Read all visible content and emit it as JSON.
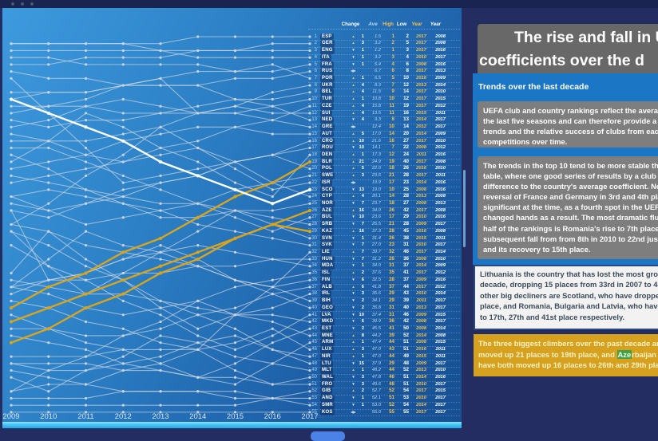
{
  "right_panel": {
    "title_lines": [
      "The rise and fall in U",
      "coefficients over the d"
    ],
    "section_label": "Trends over the last decade",
    "para1_lines": [
      "UEFA club and country rankings reflect the average res",
      "the last five seasons and can therefore provide a good",
      "trends and the relative success of clubs from each cou",
      "competitions over time."
    ],
    "para2_lines": [
      "The trends in the top 10 tend to be more stable than l",
      "table, where one good series of results by a club can m",
      "difference to the country's average coefficient. Nonet",
      "reversal of France and Germany in 3rd and 4th place w",
      "significant at the time, as a fourth spot in the UEFA Ch",
      "changed hands as a result. The most dramatic fluctuat",
      "half of the rankings is Romania's rise to 7th place in 2",
      "subsequent fall from from 8th in 2010 to 22nd just tw",
      "and its recovery to 15th place."
    ],
    "white_box_lines": [
      "Lithuania is the country that has lost the most ground",
      "decade, dropping 15 places from 33rd in 2007 to 48th",
      "other big decliners are Scotland, who have dropped 13",
      "place, and Romania, Bulgaria and Latvia, who have all",
      "to 17th, 27th and 41st place respectively."
    ],
    "gold_box": {
      "lines": [
        "The three biggest climbers over the past decade are Be",
        "moved up 21 places to 19th place, and Azerbaijan and",
        "have both moved up 16 places to 26th and 29th place"
      ],
      "highlight": {
        "line": 1,
        "pre": "moved up 21 places to 19th place, and ",
        "text": "Aze",
        "post": "rbaijan and"
      }
    }
  },
  "table": {
    "headers": [
      "Change",
      "Ave",
      "High",
      "Low",
      "Year",
      "Year"
    ]
  },
  "colors": {
    "gold_line": "#d9a41d",
    "white_line": "#ffffff",
    "gray_line": "rgba(210,216,226,0.65)",
    "gray_dot": "#ccd3dc",
    "cyan_bar": "#45c4f2",
    "gold_box_bg": "#d5a11e",
    "highlight_green": "#43a047",
    "panel_blue": "#2b7ec4",
    "navy_bg": "#232d62"
  },
  "chart_data": {
    "type": "line",
    "subtype": "bump-ranking",
    "title": "",
    "x": [
      2009,
      2010,
      2011,
      2012,
      2013,
      2014,
      2015,
      2016,
      2017
    ],
    "x_labels": [
      "2009",
      "2010",
      "2011",
      "2012",
      "2013",
      "2014",
      "2015",
      "2016",
      "2017"
    ],
    "rank_range": [
      1,
      55
    ],
    "grid": false,
    "legend": "none",
    "highlights": {
      "SCO": "#ffffff",
      "BLR": "#d9a41d",
      "AZE": "#d9a41d",
      "KAZ": "#d9a41d"
    },
    "countries": [
      {
        "rank": 1,
        "code": "ESP",
        "change": 1,
        "ave": "1.5",
        "high": 1,
        "low": 2,
        "high_year": 2017,
        "low_year": 2008
      },
      {
        "rank": 2,
        "code": "GER",
        "change": 3,
        "ave": "3.2",
        "high": 2,
        "low": 5,
        "high_year": 2017,
        "low_year": 2008
      },
      {
        "rank": 3,
        "code": "ENG",
        "change": -1,
        "ave": "1.2",
        "high": 1,
        "low": 3,
        "high_year": 2017,
        "low_year": 2016
      },
      {
        "rank": 4,
        "code": "ITA",
        "change": -1,
        "ave": "3.2",
        "high": 3,
        "low": 4,
        "high_year": 2010,
        "low_year": 2017
      },
      {
        "rank": 5,
        "code": "FRA",
        "change": -1,
        "ave": "5.4",
        "high": 4,
        "low": 6,
        "high_year": 2008,
        "low_year": 2016
      },
      {
        "rank": 6,
        "code": "RUS",
        "change": 0,
        "ave": "6.7",
        "high": 6,
        "low": 8,
        "high_year": 2017,
        "low_year": 2013
      },
      {
        "rank": 7,
        "code": "POR",
        "change": 1,
        "ave": "6.5",
        "high": 5,
        "low": 10,
        "high_year": 2016,
        "low_year": 2009
      },
      {
        "rank": 8,
        "code": "UKR",
        "change": 4,
        "ave": "8.3",
        "high": 7,
        "low": 12,
        "high_year": 2013,
        "low_year": 2014
      },
      {
        "rank": 9,
        "code": "BEL",
        "change": 4,
        "ave": "11.5",
        "high": 9,
        "low": 14,
        "high_year": 2017,
        "low_year": 2010
      },
      {
        "rank": 10,
        "code": "TUR",
        "change": 1,
        "ave": "10.8",
        "high": 10,
        "low": 12,
        "high_year": 2017,
        "low_year": 2015
      },
      {
        "rank": 11,
        "code": "CZE",
        "change": 4,
        "ave": "15.8",
        "high": 11,
        "low": 19,
        "high_year": 2017,
        "low_year": 2012
      },
      {
        "rank": 12,
        "code": "SUI",
        "change": 4,
        "ave": "13.5",
        "high": 11,
        "low": 16,
        "high_year": 2015,
        "low_year": 2011
      },
      {
        "rank": 13,
        "code": "NED",
        "change": -4,
        "ave": "9.3",
        "high": 8,
        "low": 13,
        "high_year": 2014,
        "low_year": 2017
      },
      {
        "rank": 14,
        "code": "GRE",
        "change": 0,
        "ave": "12.4",
        "high": 10,
        "low": 14,
        "high_year": 2012,
        "low_year": 2017
      },
      {
        "rank": 15,
        "code": "AUT",
        "change": 5,
        "ave": "17.0",
        "high": 14,
        "low": 20,
        "high_year": 2014,
        "low_year": 2009
      },
      {
        "rank": 16,
        "code": "CRO",
        "change": 10,
        "ave": "21.6",
        "high": 16,
        "low": 27,
        "high_year": 2017,
        "low_year": 2010
      },
      {
        "rank": 17,
        "code": "ROU",
        "change": -10,
        "ave": "14.1",
        "high": 7,
        "low": 22,
        "high_year": 2008,
        "low_year": 2012
      },
      {
        "rank": 18,
        "code": "DEN",
        "change": 1,
        "ave": "17.3",
        "high": 12,
        "low": 24,
        "high_year": 2011,
        "low_year": 2016
      },
      {
        "rank": 19,
        "code": "BLR",
        "change": 21,
        "ave": "24.9",
        "high": 19,
        "low": 40,
        "high_year": 2017,
        "low_year": 2008
      },
      {
        "rank": 20,
        "code": "POL",
        "change": 5,
        "ave": "22.0",
        "high": 18,
        "low": 26,
        "high_year": 2016,
        "low_year": 2010
      },
      {
        "rank": 21,
        "code": "SWE",
        "change": 3,
        "ave": "23.6",
        "high": 21,
        "low": 28,
        "high_year": 2017,
        "low_year": 2011
      },
      {
        "rank": 22,
        "code": "ISR",
        "change": 0,
        "ave": "19.9",
        "high": 17,
        "low": 23,
        "high_year": 2014,
        "low_year": 2016
      },
      {
        "rank": 23,
        "code": "SCO",
        "change": -13,
        "ave": "19.0",
        "high": 10,
        "low": 25,
        "high_year": 2008,
        "low_year": 2016
      },
      {
        "rank": 24,
        "code": "CYP",
        "change": 4,
        "ave": "20.1",
        "high": 14,
        "low": 28,
        "high_year": 2013,
        "low_year": 2008
      },
      {
        "rank": 25,
        "code": "NOR",
        "change": -7,
        "ave": "23.7",
        "high": 18,
        "low": 27,
        "high_year": 2008,
        "low_year": 2013
      },
      {
        "rank": 26,
        "code": "AZE",
        "change": 16,
        "ave": "34.0",
        "high": 26,
        "low": 42,
        "high_year": 2017,
        "low_year": 2008
      },
      {
        "rank": 27,
        "code": "BUL",
        "change": -10,
        "ave": "23.6",
        "high": 17,
        "low": 29,
        "high_year": 2010,
        "low_year": 2016
      },
      {
        "rank": 28,
        "code": "SRB",
        "change": -7,
        "ave": "25.5",
        "high": 21,
        "low": 28,
        "high_year": 2009,
        "low_year": 2017
      },
      {
        "rank": 29,
        "code": "KAZ",
        "change": 16,
        "ave": "37.3",
        "high": 28,
        "low": 45,
        "high_year": 2016,
        "low_year": 2008
      },
      {
        "rank": 30,
        "code": "SVN",
        "change": -1,
        "ave": "31.4",
        "high": 26,
        "low": 38,
        "high_year": 2015,
        "low_year": 2011
      },
      {
        "rank": 31,
        "code": "SVK",
        "change": -7,
        "ave": "27.0",
        "high": 23,
        "low": 31,
        "high_year": 2010,
        "low_year": 2017
      },
      {
        "rank": 32,
        "code": "LIE",
        "change": 7,
        "ave": "39.7",
        "high": 32,
        "low": 46,
        "high_year": 2017,
        "low_year": 2014
      },
      {
        "rank": 33,
        "code": "HUN",
        "change": -7,
        "ave": "31.2",
        "high": 26,
        "low": 36,
        "high_year": 2008,
        "low_year": 2010
      },
      {
        "rank": 34,
        "code": "MDA",
        "change": -1,
        "ave": "34.0",
        "high": 31,
        "low": 37,
        "high_year": 2014,
        "low_year": 2009
      },
      {
        "rank": 35,
        "code": "ISL",
        "change": 2,
        "ave": "37.6",
        "high": 35,
        "low": 41,
        "high_year": 2017,
        "low_year": 2012
      },
      {
        "rank": 36,
        "code": "FIN",
        "change": -6,
        "ave": "32.5",
        "high": 28,
        "low": 37,
        "high_year": 2009,
        "low_year": 2016
      },
      {
        "rank": 37,
        "code": "ALB",
        "change": 6,
        "ave": "41.8",
        "high": 37,
        "low": 44,
        "high_year": 2017,
        "low_year": 2012
      },
      {
        "rank": 38,
        "code": "IRL",
        "change": -3,
        "ave": "35.6",
        "high": 29,
        "low": 43,
        "high_year": 2010,
        "low_year": 2014
      },
      {
        "rank": 39,
        "code": "BIH",
        "change": -2,
        "ave": "34.1",
        "high": 29,
        "low": 39,
        "high_year": 2011,
        "low_year": 2017
      },
      {
        "rank": 40,
        "code": "GEO",
        "change": -2,
        "ave": "35.8",
        "high": 31,
        "low": 40,
        "high_year": 2013,
        "low_year": 2017
      },
      {
        "rank": 41,
        "code": "LVA",
        "change": -10,
        "ave": "37.4",
        "high": 31,
        "low": 46,
        "high_year": 2009,
        "low_year": 2015
      },
      {
        "rank": 42,
        "code": "MKD",
        "change": -6,
        "ave": "39.9",
        "high": 36,
        "low": 42,
        "high_year": 2008,
        "low_year": 2017
      },
      {
        "rank": 43,
        "code": "EST",
        "change": -2,
        "ave": "45.5",
        "high": 41,
        "low": 50,
        "high_year": 2008,
        "low_year": 2014
      },
      {
        "rank": 44,
        "code": "MNE",
        "change": 8,
        "ave": "44.2",
        "high": 39,
        "low": 52,
        "high_year": 2014,
        "low_year": 2008
      },
      {
        "rank": 45,
        "code": "ARM",
        "change": 1,
        "ave": "47.4",
        "high": 44,
        "low": 51,
        "high_year": 2008,
        "low_year": 2015
      },
      {
        "rank": 46,
        "code": "LUX",
        "change": 3,
        "ave": "47.0",
        "high": 43,
        "low": 51,
        "high_year": 2016,
        "low_year": 2011
      },
      {
        "rank": 47,
        "code": "NIR",
        "change": 1,
        "ave": "47.0",
        "high": 44,
        "low": 49,
        "high_year": 2015,
        "low_year": 2011
      },
      {
        "rank": 48,
        "code": "LTU",
        "change": -15,
        "ave": "37.9",
        "high": 29,
        "low": 48,
        "high_year": 2009,
        "low_year": 2017
      },
      {
        "rank": 49,
        "code": "MLT",
        "change": 1,
        "ave": "48.2",
        "high": 44,
        "low": 52,
        "high_year": 2013,
        "low_year": 2010
      },
      {
        "rank": 50,
        "code": "WAL",
        "change": -3,
        "ave": "47.8",
        "high": 46,
        "low": 51,
        "high_year": 2014,
        "low_year": 2016
      },
      {
        "rank": 51,
        "code": "FRO",
        "change": -3,
        "ave": "49.6",
        "high": 48,
        "low": 51,
        "high_year": 2010,
        "low_year": 2017
      },
      {
        "rank": 52,
        "code": "GIB",
        "change": 2,
        "ave": "52.7",
        "high": 52,
        "low": 54,
        "high_year": 2017,
        "low_year": 2015
      },
      {
        "rank": 53,
        "code": "AND",
        "change": -1,
        "ave": "52.1",
        "high": 51,
        "low": 53,
        "high_year": 2010,
        "low_year": 2017
      },
      {
        "rank": 54,
        "code": "SMR",
        "change": -1,
        "ave": "53.0",
        "high": 52,
        "low": 54,
        "high_year": 2014,
        "low_year": 2017
      },
      {
        "rank": 55,
        "code": "KOS",
        "change": 0,
        "ave": "55.0",
        "high": 55,
        "low": 55,
        "high_year": 2017,
        "low_year": 2017
      }
    ]
  }
}
